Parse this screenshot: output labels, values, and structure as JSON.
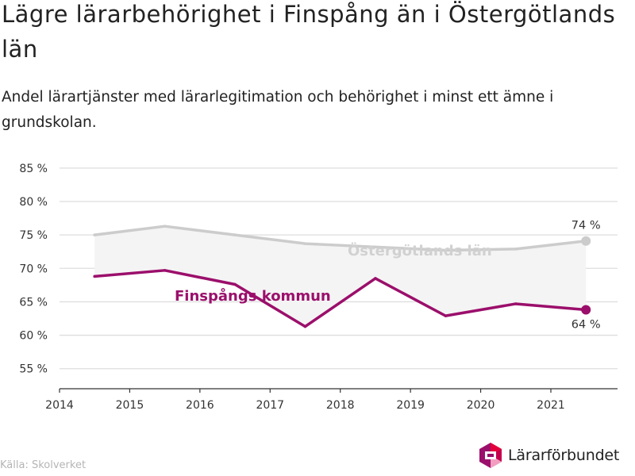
{
  "title": "Lägre lärarbehörighet i Finspång än i Östergötlands län",
  "subtitle": "Andel lärartjänster med lärarlegitimation och behörighet i minst ett ämne i grundskolan.",
  "source": "Källa: Skolverket",
  "logo": {
    "name": "Lärarförbundet",
    "icon": "lararforbundet-logo-icon",
    "colors": [
      "#e4003a",
      "#9b0f6b",
      "#f29ec0"
    ]
  },
  "chart_data": {
    "type": "line",
    "x_ticks": [
      "2014",
      "2015",
      "2016",
      "2017",
      "2018",
      "2019",
      "2020",
      "2021"
    ],
    "y_ticks": [
      "55 %",
      "60 %",
      "65 %",
      "70 %",
      "75 %",
      "80 %",
      "85 %"
    ],
    "ylim": [
      52,
      87
    ],
    "xlim": [
      2014,
      2021.95
    ],
    "grid": true,
    "series": [
      {
        "name": "Östergötlands län",
        "color": "#cccccc",
        "x": [
          2014.5,
          2015.5,
          2016.5,
          2017.5,
          2018.5,
          2019.5,
          2020.5,
          2021.5
        ],
        "values": [
          75.0,
          76.3,
          75.0,
          73.7,
          73.2,
          72.7,
          72.9,
          74.1
        ],
        "end_label": "74 %"
      },
      {
        "name": "Finspångs kommun",
        "color": "#9b0f6b",
        "x": [
          2014.5,
          2015.5,
          2016.5,
          2017.5,
          2018.5,
          2019.5,
          2020.5,
          2021.5
        ],
        "values": [
          68.8,
          69.7,
          67.6,
          61.3,
          68.5,
          62.9,
          64.7,
          63.8
        ],
        "end_label": "64 %"
      }
    ],
    "band_between_series": true,
    "band_color": "#f4f4f4"
  }
}
